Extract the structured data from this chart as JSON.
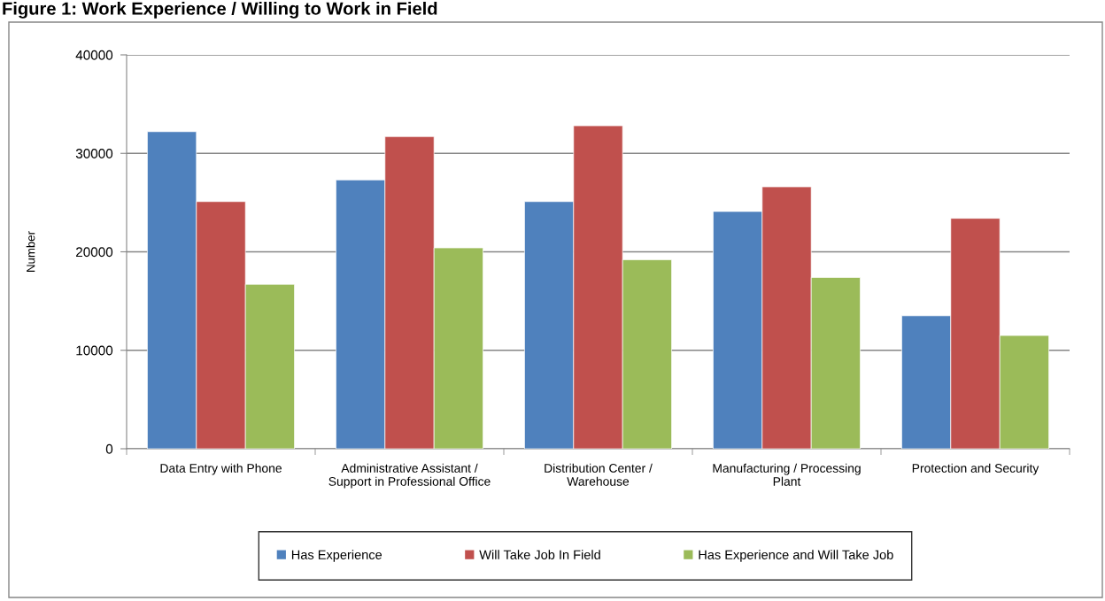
{
  "chart_data": {
    "type": "bar",
    "title": "Figure 1: Work Experience / Willing to Work in Field",
    "ylabel": "Number",
    "categories": [
      "Data Entry with Phone",
      "Administrative Assistant /\nSupport in Professional Office",
      "Distribution Center /\nWarehouse",
      "Manufacturing / Processing\nPlant",
      "Protection and Security"
    ],
    "series": [
      {
        "name": "Has Experience",
        "color": "#4f81bd",
        "values": [
          32200,
          27300,
          25100,
          24100,
          13500
        ]
      },
      {
        "name": "Will Take Job In Field",
        "color": "#c0504d",
        "values": [
          25100,
          31700,
          32800,
          26600,
          23400
        ]
      },
      {
        "name": "Has Experience and Will Take Job",
        "color": "#9bbb59",
        "values": [
          16700,
          20400,
          19200,
          17400,
          11500
        ]
      }
    ],
    "ylim": [
      0,
      40000
    ],
    "yticks": [
      0,
      10000,
      20000,
      30000,
      40000
    ],
    "grid": "y",
    "legend": "bottom"
  }
}
